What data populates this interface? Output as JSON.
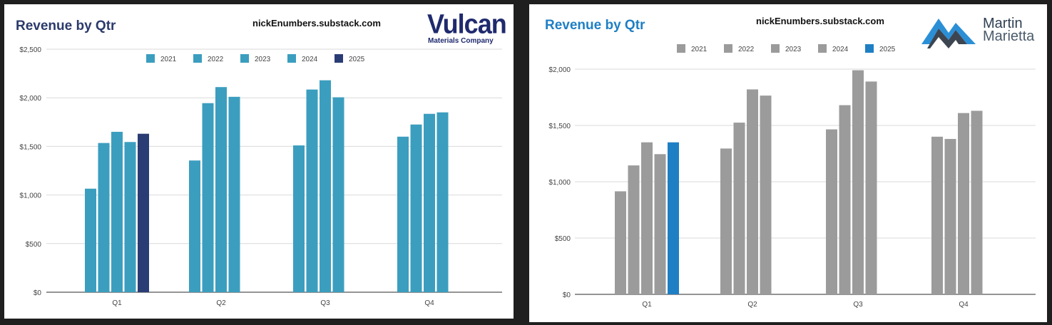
{
  "chart_data": [
    {
      "type": "bar",
      "title": "Revenue by Qtr",
      "watermark": "nickEnumbers.substack.com",
      "logo": {
        "name": "Vulcan",
        "subtitle": "Materials Company"
      },
      "categories": [
        "Q1",
        "Q2",
        "Q3",
        "Q4"
      ],
      "series": [
        {
          "name": "2021",
          "values": [
            1065,
            1355,
            1510,
            1600
          ]
        },
        {
          "name": "2022",
          "values": [
            1535,
            1945,
            2085,
            1725
          ]
        },
        {
          "name": "2023",
          "values": [
            1650,
            2110,
            2180,
            1835
          ]
        },
        {
          "name": "2024",
          "values": [
            1545,
            2010,
            2005,
            1850
          ]
        },
        {
          "name": "2025",
          "values": [
            1630,
            null,
            null,
            null
          ]
        }
      ],
      "colors": [
        "#3b9ebf",
        "#3b9ebf",
        "#3b9ebf",
        "#3b9ebf",
        "#2a3c74"
      ],
      "ylim": [
        0,
        2500
      ],
      "yticks": [
        0,
        500,
        1000,
        1500,
        2000,
        2500
      ],
      "ytick_labels": [
        "$0",
        "$500",
        "$1,000",
        "$1,500",
        "$2,000",
        "$2,500"
      ],
      "grid": true,
      "legend": "top-center"
    },
    {
      "type": "bar",
      "title": "Revenue by Qtr",
      "watermark": "nickEnumbers.substack.com",
      "logo": {
        "name": "Martin",
        "subtitle": "Marietta"
      },
      "categories": [
        "Q1",
        "Q2",
        "Q3",
        "Q4"
      ],
      "series": [
        {
          "name": "2021",
          "values": [
            915,
            1295,
            1465,
            1400
          ]
        },
        {
          "name": "2022",
          "values": [
            1145,
            1525,
            1680,
            1380
          ]
        },
        {
          "name": "2023",
          "values": [
            1350,
            1820,
            1990,
            1610
          ]
        },
        {
          "name": "2024",
          "values": [
            1245,
            1765,
            1890,
            1630
          ]
        },
        {
          "name": "2025",
          "values": [
            1350,
            null,
            null,
            null
          ]
        }
      ],
      "colors": [
        "#9b9b9b",
        "#9b9b9b",
        "#9b9b9b",
        "#9b9b9b",
        "#1f7fc4"
      ],
      "ylim": [
        0,
        2000
      ],
      "yticks": [
        0,
        500,
        1000,
        1500,
        2000
      ],
      "ytick_labels": [
        "$0",
        "$500",
        "$1,000",
        "$1,500",
        "$2,000"
      ],
      "grid": true,
      "legend": "top-center"
    }
  ]
}
